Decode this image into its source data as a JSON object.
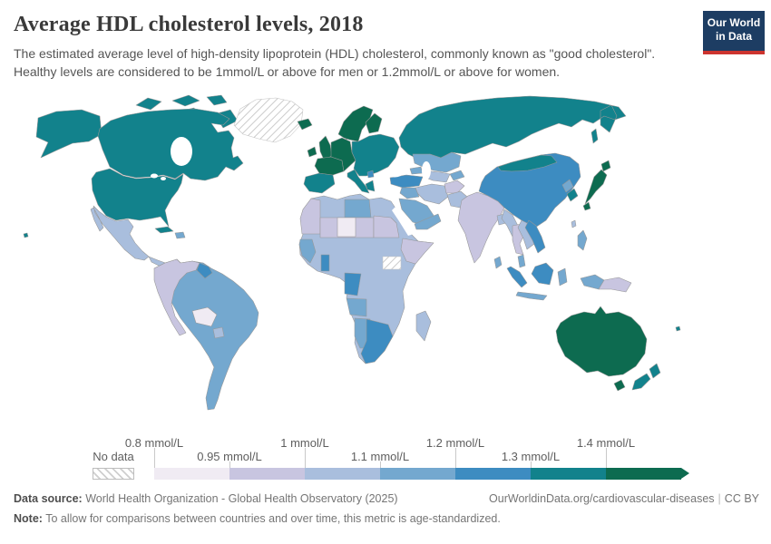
{
  "header": {
    "title": "Average HDL cholesterol levels, 2018",
    "subtitle": "The estimated average level of high-density lipoprotein (HDL) cholesterol, commonly known as \"good cholesterol\". Healthy levels are considered to be 1mmol/L or above for men or 1.2mmol/L or above for women."
  },
  "logo": {
    "line1": "Our World",
    "line2": "in Data",
    "bg_color": "#1d3d63",
    "accent_color": "#cc342f"
  },
  "legend": {
    "no_data_label": "No data",
    "labels_top": [
      "0.8 mmol/L",
      "1 mmol/L",
      "1.2 mmol/L",
      "1.4 mmol/L"
    ],
    "labels_bottom": [
      "0.95 mmol/L",
      "1.1 mmol/L",
      "1.3 mmol/L"
    ]
  },
  "footer": {
    "data_source_label": "Data source:",
    "data_source_text": " World Health Organization - Global Health Observatory (2025)",
    "link_text": "OurWorldinData.org/cardiovascular-diseases",
    "separator": "|",
    "license_text": "CC BY",
    "note_label": "Note:",
    "note_text": " To allow for comparisons between countries and over time, this metric is age-standardized."
  },
  "chart_data": {
    "type": "choropleth_map",
    "title": "Average HDL cholesterol levels",
    "year": 2018,
    "unit": "mmol/L",
    "bin_edges": [
      0.8,
      0.95,
      1.0,
      1.1,
      1.2,
      1.3,
      1.4
    ],
    "bin_labels": [
      "0.8–0.95",
      "0.95–1",
      "1–1.1",
      "1.1–1.2",
      "1.2–1.3",
      "1.3–1.4",
      "1.4+"
    ],
    "bin_colors": [
      "#f0ebf3",
      "#c8c5e0",
      "#a9bedd",
      "#74a8cf",
      "#3d8cc1",
      "#12828c",
      "#0d6b50"
    ],
    "no_data_pattern": "diagonal-hatch",
    "regions": {
      "alaska": 5,
      "canada": 5,
      "canadian-arctic": 5,
      "united-states": 5,
      "greenland": "no-data",
      "iceland": 6,
      "mexico": 2,
      "central-america": 2,
      "cuba": 5,
      "hispaniola": 3,
      "brazil-argentina-chile": 3,
      "colombia-venezuela-peru": 1,
      "guyana": 4,
      "bolivia": 0,
      "paraguay": 2,
      "ireland": 6,
      "united-kingdom": 6,
      "scandinavia": 6,
      "finland": 6,
      "denmark": 6,
      "france": 6,
      "central-europe": 6,
      "iberia": 5,
      "italy": 5,
      "greece": 5,
      "eastern-europe": 5,
      "serbia": 4,
      "russia": 5,
      "turkey": 4,
      "caucasus": 3,
      "kazakhstan": 3,
      "uzbekistan-turkmenistan": 2,
      "kyrgyzstan-tajikistan": 3,
      "iran": 2,
      "iraq-syria": 3,
      "saudi-arabia": 3,
      "yemen-oman": 3,
      "afghanistan": 1,
      "pakistan": 2,
      "india": 1,
      "sri-lanka": 3,
      "bangladesh": 2,
      "china": 4,
      "mongolia": 5,
      "north-korea": 3,
      "south-korea": 5,
      "japan": 6,
      "taiwan": 2,
      "myanmar": 2,
      "thailand": 1,
      "laos-cambodia": 2,
      "vietnam": 4,
      "malaysia": 3,
      "sumatra": 4,
      "borneo": 4,
      "java": 3,
      "sulawesi": 3,
      "philippines": 3,
      "west-new-guinea": 3,
      "papua-new-guinea": 1,
      "australia": 6,
      "tasmania": 6,
      "new-zealand": 5,
      "fiji": 5,
      "hawaii": 5,
      "africa": 2,
      "morocco-mauritania": 1,
      "sahel": 1,
      "niger": 0,
      "sudan": 1,
      "libya": 3,
      "south-sudan": "no-data",
      "horn-of-africa": 1,
      "west-africa": 3,
      "ghana": 4,
      "cameroon-gabon": 4,
      "angola": 3,
      "namibia": 3,
      "southern-africa": 4,
      "madagascar": 2
    }
  }
}
